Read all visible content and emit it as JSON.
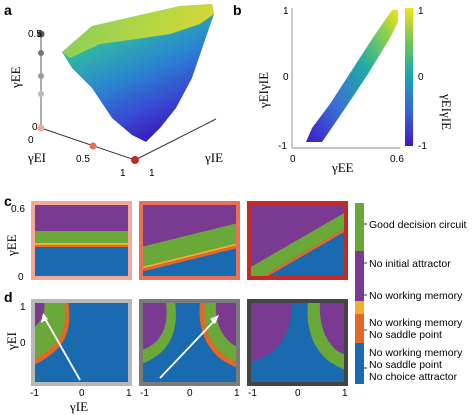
{
  "panel_labels": {
    "a": "a",
    "b": "b",
    "c": "c",
    "d": "d"
  },
  "colors": {
    "good": "#6aa83a",
    "no_initial_attractor": "#7b3a92",
    "no_working_memory": "#f0b02a",
    "no_wm_no_saddle": "#e2682a",
    "no_wm_no_saddle_no_choice": "#1a6ab0",
    "frame_c1": "#f2a998",
    "frame_c2": "#e8705a",
    "frame_c3": "#c22a26",
    "frame_d1": "#b8b8b8",
    "frame_d2": "#7a7a7a",
    "frame_d3": "#444444"
  },
  "panel_a": {
    "axis_ee": "γEE",
    "axis_ei": "γEI",
    "axis_ie": "γIE",
    "ticks": {
      "ee_top": "0.5",
      "ee_zero": "0",
      "ei_half": "0.5",
      "ei_one": "1",
      "ie_one": "1",
      "origin": "0"
    }
  },
  "panel_b": {
    "xlabel": "γEE",
    "ylabel": "γEIγIE",
    "colorbar_label": "γEIγIE",
    "xticks": [
      "0",
      "0.6"
    ],
    "yticks": [
      "1",
      "0",
      "-1"
    ],
    "cbar_ticks": [
      "1",
      "0",
      "-1"
    ]
  },
  "panel_c": {
    "ylabel": "γEE",
    "yticks": [
      "0.6",
      "0"
    ]
  },
  "panel_d": {
    "ylabel": "γEI",
    "yticks": [
      "1",
      "0"
    ],
    "xlabel": "γIE",
    "xticks": [
      "-1",
      "0",
      "1",
      "-1",
      "0",
      "1",
      "-1",
      "0",
      "1"
    ]
  },
  "legend": [
    {
      "lines": [
        "Good decision circuit"
      ],
      "color": "good"
    },
    {
      "lines": [
        "No initial attractor"
      ],
      "color": "no_initial_attractor"
    },
    {
      "lines": [
        "No working memory"
      ],
      "color": "no_working_memory"
    },
    {
      "lines": [
        "No working memory",
        "No saddle point"
      ],
      "color": "no_wm_no_saddle"
    },
    {
      "lines": [
        "No working memory",
        "No saddle point",
        "No choice attractor"
      ],
      "color": "no_wm_no_saddle_no_choice"
    }
  ]
}
